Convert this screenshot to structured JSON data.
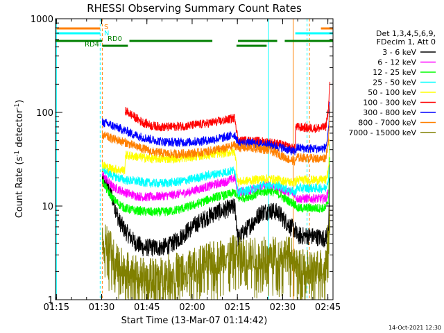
{
  "chart_data": {
    "type": "line",
    "title": "RHESSI Observing Summary Count Rates",
    "xlabel": "Start Time (13-Mar-07 01:14:42)",
    "ylabel": "Count Rate (s^-1 detector^-1)",
    "ylabel_main": "Count Rate (s",
    "ylabel_sup1": "-1",
    "ylabel_mid": " detector",
    "ylabel_sup2": "-1",
    "ylabel_end": ")",
    "y_scale": "log",
    "ylim": [
      1,
      1000
    ],
    "xlim_minutes": [
      0,
      92
    ],
    "x_ticks": [
      {
        "label": "01:15",
        "t": 0.3
      },
      {
        "label": "01:30",
        "t": 15.3
      },
      {
        "label": "01:45",
        "t": 30.3
      },
      {
        "label": "02:00",
        "t": 45.3
      },
      {
        "label": "02:15",
        "t": 60.3
      },
      {
        "label": "02:30",
        "t": 75.3
      },
      {
        "label": "02:45",
        "t": 90.3
      }
    ],
    "y_ticks": [
      {
        "label": "1",
        "v": 1
      },
      {
        "label": "10",
        "v": 10
      },
      {
        "label": "100",
        "v": 100
      },
      {
        "label": "1000",
        "v": 1000
      }
    ],
    "legend_header": [
      "Det 1,3,4,5,6,9,",
      "FDecim 1, Att 0"
    ],
    "legend_placement": "right",
    "series": [
      {
        "name": "3 - 6 keV",
        "color": "#000000",
        "points": [
          [
            15.5,
            19
          ],
          [
            17,
            17
          ],
          [
            19,
            12
          ],
          [
            21,
            7
          ],
          [
            23,
            5.5
          ],
          [
            26,
            4.2
          ],
          [
            29,
            3.6
          ],
          [
            32,
            3.6
          ],
          [
            35,
            3.6
          ],
          [
            38,
            3.8
          ],
          [
            41,
            4.5
          ],
          [
            44,
            5.5
          ],
          [
            47,
            6.5
          ],
          [
            50,
            7.5
          ],
          [
            53,
            8.5
          ],
          [
            56,
            9
          ],
          [
            58,
            9.5
          ],
          [
            59.5,
            9.8
          ],
          [
            60.5,
            4.5
          ],
          [
            63,
            5.5
          ],
          [
            66,
            7
          ],
          [
            68,
            8.5
          ],
          [
            71,
            9
          ],
          [
            74,
            8.5
          ],
          [
            76,
            7
          ],
          [
            78,
            6
          ],
          [
            79.5,
            5.5
          ],
          [
            80,
            4.8
          ],
          [
            84,
            4.8
          ],
          [
            88,
            4.6
          ],
          [
            89.6,
            4.5
          ],
          [
            90.5,
            6
          ],
          [
            91,
            18
          ]
        ]
      },
      {
        "name": "6 - 12 keV",
        "color": "#ff00ff",
        "points": [
          [
            15.5,
            22
          ],
          [
            17,
            19
          ],
          [
            19,
            16
          ],
          [
            21,
            15
          ],
          [
            23,
            14
          ],
          [
            26,
            13
          ],
          [
            29,
            12.5
          ],
          [
            32,
            12.5
          ],
          [
            35,
            12.8
          ],
          [
            38,
            13
          ],
          [
            41,
            13.5
          ],
          [
            44,
            14
          ],
          [
            47,
            15
          ],
          [
            50,
            16
          ],
          [
            53,
            17
          ],
          [
            56,
            18
          ],
          [
            58,
            19
          ],
          [
            59.5,
            20
          ],
          [
            60.5,
            14
          ],
          [
            63,
            14.5
          ],
          [
            66,
            15
          ],
          [
            68,
            16
          ],
          [
            71,
            16.5
          ],
          [
            74,
            15.5
          ],
          [
            76,
            14.5
          ],
          [
            78,
            14
          ],
          [
            79.5,
            13.5
          ],
          [
            80,
            12
          ],
          [
            84,
            12
          ],
          [
            88,
            12
          ],
          [
            89.6,
            12
          ],
          [
            90.5,
            14
          ],
          [
            91,
            28
          ]
        ]
      },
      {
        "name": "12 - 25 keV",
        "color": "#00ff00",
        "points": [
          [
            15.5,
            19
          ],
          [
            17,
            15
          ],
          [
            19,
            12
          ],
          [
            21,
            10.5
          ],
          [
            23,
            9.5
          ],
          [
            26,
            9
          ],
          [
            29,
            8.8
          ],
          [
            32,
            8.6
          ],
          [
            35,
            8.6
          ],
          [
            38,
            8.8
          ],
          [
            41,
            9.2
          ],
          [
            44,
            9.8
          ],
          [
            47,
            10.5
          ],
          [
            50,
            11.5
          ],
          [
            53,
            12.5
          ],
          [
            56,
            13
          ],
          [
            58,
            13.5
          ],
          [
            59.5,
            14
          ],
          [
            60.5,
            12
          ],
          [
            63,
            12.5
          ],
          [
            66,
            13
          ],
          [
            68,
            14
          ],
          [
            71,
            14.5
          ],
          [
            74,
            13.5
          ],
          [
            76,
            12
          ],
          [
            78,
            11
          ],
          [
            79.5,
            10.5
          ],
          [
            80,
            9.5
          ],
          [
            84,
            9.5
          ],
          [
            88,
            9.5
          ],
          [
            89.6,
            9.5
          ],
          [
            90.5,
            12
          ],
          [
            91,
            40
          ]
        ]
      },
      {
        "name": "25 - 50 keV",
        "color": "#00ffff",
        "points": [
          [
            15.5,
            26
          ],
          [
            17,
            23
          ],
          [
            19,
            21
          ],
          [
            21,
            20
          ],
          [
            23,
            19
          ],
          [
            26,
            18.5
          ],
          [
            29,
            18
          ],
          [
            32,
            17.5
          ],
          [
            35,
            17.5
          ],
          [
            38,
            17.8
          ],
          [
            41,
            18.2
          ],
          [
            44,
            19
          ],
          [
            47,
            20
          ],
          [
            50,
            21
          ],
          [
            53,
            22
          ],
          [
            56,
            23
          ],
          [
            58,
            23.5
          ],
          [
            59.5,
            24
          ],
          [
            60.5,
            14
          ],
          [
            63,
            14.5
          ],
          [
            66,
            15.5
          ],
          [
            68,
            16.5
          ],
          [
            71,
            17
          ],
          [
            74,
            16.5
          ],
          [
            76,
            15.5
          ],
          [
            78,
            14.5
          ],
          [
            79.5,
            14
          ],
          [
            80,
            15.5
          ],
          [
            84,
            15.5
          ],
          [
            88,
            15.5
          ],
          [
            89.6,
            15.5
          ],
          [
            90.5,
            20
          ],
          [
            91,
            55
          ]
        ]
      },
      {
        "name": "50 - 100 keV",
        "color": "#ffff00",
        "points": [
          [
            15.5,
            28
          ],
          [
            17,
            26
          ],
          [
            19,
            25
          ],
          [
            21,
            24.5
          ],
          [
            23,
            24
          ],
          [
            23.1,
            35
          ],
          [
            26,
            34
          ],
          [
            29,
            33
          ],
          [
            32,
            32
          ],
          [
            35,
            32
          ],
          [
            38,
            32
          ],
          [
            41,
            32.5
          ],
          [
            44,
            33
          ],
          [
            47,
            34
          ],
          [
            50,
            35
          ],
          [
            53,
            36
          ],
          [
            56,
            37
          ],
          [
            58,
            37.5
          ],
          [
            59.5,
            38
          ],
          [
            60.5,
            18
          ],
          [
            63,
            18.5
          ],
          [
            66,
            19
          ],
          [
            68,
            19.5
          ],
          [
            71,
            19.5
          ],
          [
            74,
            19
          ],
          [
            76,
            18.5
          ],
          [
            78,
            18
          ],
          [
            79.5,
            18
          ],
          [
            80,
            19
          ],
          [
            84,
            19
          ],
          [
            88,
            19
          ],
          [
            89.6,
            19
          ],
          [
            90.5,
            24
          ],
          [
            91,
            60
          ]
        ]
      },
      {
        "name": "100 - 300 keV",
        "color": "#ff0000",
        "points": [
          [
            23.1,
            105
          ],
          [
            26,
            90
          ],
          [
            29,
            78
          ],
          [
            32,
            72
          ],
          [
            35,
            70
          ],
          [
            38,
            70
          ],
          [
            41,
            71
          ],
          [
            44,
            72
          ],
          [
            47,
            74
          ],
          [
            50,
            76
          ],
          [
            53,
            79
          ],
          [
            56,
            82
          ],
          [
            58,
            85
          ],
          [
            59.5,
            88
          ],
          [
            60.5,
            50
          ],
          [
            63,
            50
          ],
          [
            66,
            49.5
          ],
          [
            68,
            49
          ],
          [
            71,
            48
          ],
          [
            74,
            46
          ],
          [
            76,
            44
          ],
          [
            78,
            42
          ],
          [
            79.5,
            41
          ],
          [
            79.6,
            70
          ],
          [
            84,
            68
          ],
          [
            88,
            68
          ],
          [
            89.6,
            70
          ],
          [
            90.5,
            110
          ],
          [
            91,
            220
          ]
        ]
      },
      {
        "name": "300 - 800 keV",
        "color": "#0000ff",
        "points": [
          [
            15.5,
            78
          ],
          [
            17,
            76
          ],
          [
            19,
            72
          ],
          [
            21,
            68
          ],
          [
            23,
            64
          ],
          [
            26,
            58
          ],
          [
            29,
            54
          ],
          [
            32,
            51
          ],
          [
            35,
            49
          ],
          [
            38,
            48
          ],
          [
            41,
            48
          ],
          [
            44,
            48
          ],
          [
            47,
            49
          ],
          [
            50,
            50
          ],
          [
            53,
            52
          ],
          [
            56,
            54
          ],
          [
            58,
            56
          ],
          [
            59.5,
            58
          ],
          [
            60.5,
            47
          ],
          [
            63,
            47
          ],
          [
            66,
            46.5
          ],
          [
            68,
            46
          ],
          [
            71,
            45
          ],
          [
            74,
            43
          ],
          [
            76,
            41
          ],
          [
            78,
            39
          ],
          [
            79.5,
            38
          ],
          [
            80,
            42
          ],
          [
            84,
            41
          ],
          [
            88,
            41
          ],
          [
            89.6,
            42
          ],
          [
            90.5,
            60
          ],
          [
            91,
            150
          ]
        ]
      },
      {
        "name": "800 - 7000 keV",
        "color": "#ff8000",
        "points": [
          [
            15.5,
            57
          ],
          [
            17,
            55
          ],
          [
            19,
            52
          ],
          [
            21,
            50
          ],
          [
            23,
            48
          ],
          [
            26,
            44
          ],
          [
            29,
            41
          ],
          [
            32,
            38
          ],
          [
            35,
            37
          ],
          [
            38,
            36
          ],
          [
            41,
            36
          ],
          [
            44,
            36.5
          ],
          [
            47,
            37
          ],
          [
            50,
            38
          ],
          [
            53,
            40
          ],
          [
            56,
            41
          ],
          [
            58,
            43
          ],
          [
            59.5,
            45
          ],
          [
            60.5,
            42
          ],
          [
            63,
            42
          ],
          [
            66,
            41.5
          ],
          [
            68,
            41
          ],
          [
            71,
            39
          ],
          [
            74,
            36
          ],
          [
            76,
            33
          ],
          [
            78,
            31
          ],
          [
            79.5,
            30
          ],
          [
            80,
            33
          ],
          [
            84,
            32.5
          ],
          [
            88,
            32
          ],
          [
            89.6,
            33
          ],
          [
            90.5,
            50
          ],
          [
            91,
            120
          ]
        ]
      },
      {
        "name": "7000 - 15000 keV",
        "color": "#808000",
        "points": [
          [
            15.5,
            5
          ],
          [
            17,
            4
          ],
          [
            19,
            3.2
          ],
          [
            21,
            2.5
          ],
          [
            23,
            2.2
          ],
          [
            26,
            2.0
          ],
          [
            29,
            1.8
          ],
          [
            32,
            1.8
          ],
          [
            35,
            1.9
          ],
          [
            38,
            2.0
          ],
          [
            41,
            2.1
          ],
          [
            44,
            2.2
          ],
          [
            47,
            2.4
          ],
          [
            50,
            2.6
          ],
          [
            53,
            2.8
          ],
          [
            56,
            3.0
          ],
          [
            58,
            3.1
          ],
          [
            59.5,
            3.2
          ],
          [
            60.5,
            3.0
          ],
          [
            63,
            3.0
          ],
          [
            66,
            3.0
          ],
          [
            68,
            3.0
          ],
          [
            71,
            3.1
          ],
          [
            74,
            3.1
          ],
          [
            76,
            3.1
          ],
          [
            78,
            3.1
          ],
          [
            79.5,
            3.2
          ],
          [
            80,
            2.2
          ],
          [
            84,
            2.2
          ],
          [
            88,
            2.3
          ],
          [
            89.6,
            2.5
          ],
          [
            90.5,
            5
          ],
          [
            91,
            12
          ]
        ]
      }
    ],
    "annotations": [
      {
        "text": "S",
        "color": "#ff8000"
      },
      {
        "text": "N",
        "color": "#00ffff"
      },
      {
        "text": "RD0",
        "color": "#007f00"
      },
      {
        "text": "RD4",
        "color": "#007f00"
      }
    ],
    "vertical_lines": [
      {
        "t": 0.3,
        "color": "#00ffff",
        "style": "solid"
      },
      {
        "t": 14.8,
        "color": "#00ffff",
        "style": "dashed"
      },
      {
        "t": 15.5,
        "color": "#ff8000",
        "style": "dashed"
      },
      {
        "t": 70.6,
        "color": "#00ffff",
        "style": "solid"
      },
      {
        "t": 78.8,
        "color": "#ff8000",
        "style": "solid"
      },
      {
        "t": 83.4,
        "color": "#00ffff",
        "style": "dashed"
      },
      {
        "t": 84.2,
        "color": "#ff8000",
        "style": "dashed"
      }
    ],
    "grid": false
  },
  "footer": {
    "timestamp": "14-Oct-2021 12:30"
  }
}
